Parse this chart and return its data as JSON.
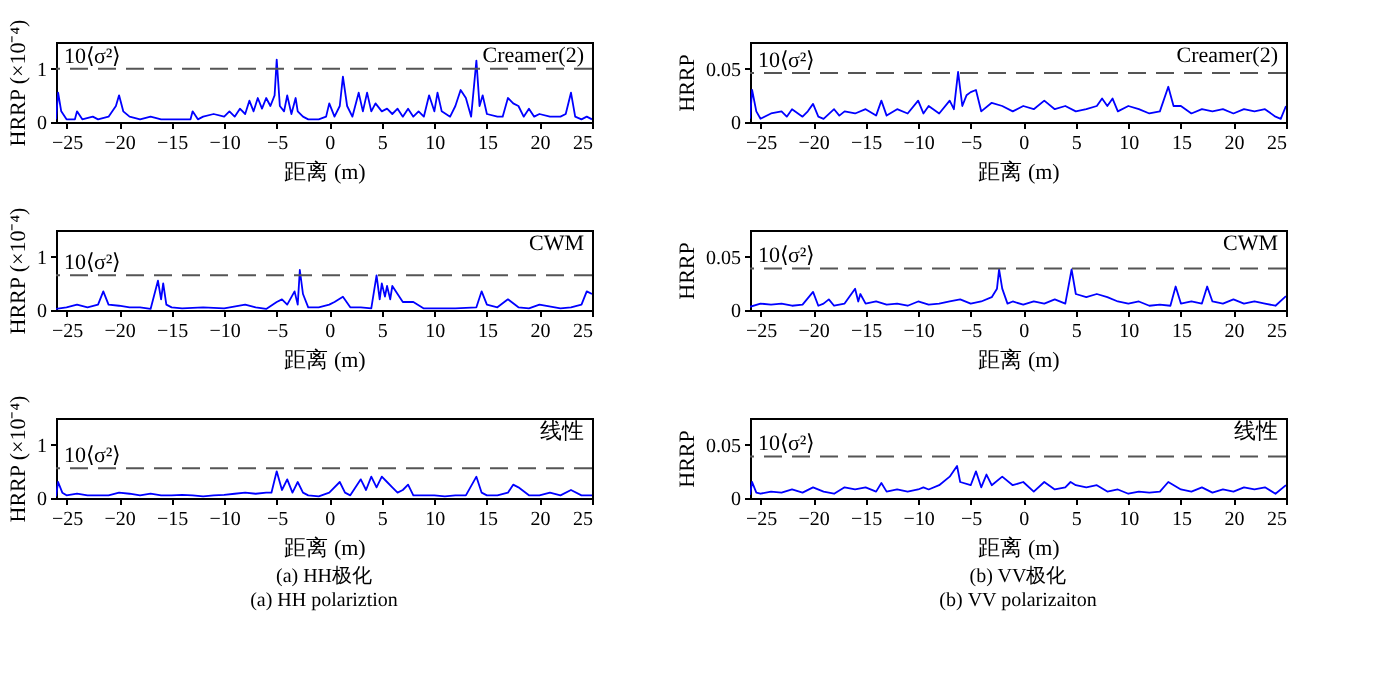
{
  "chart_data": [
    {
      "type": "line",
      "xlabel": "距离 (m)",
      "ylabel": "HRRP (×10⁻⁴)",
      "xlim": [
        -26,
        25
      ],
      "xticks": [
        -25,
        -20,
        -15,
        -10,
        -5,
        0,
        5,
        10,
        15,
        20,
        25
      ],
      "ylim": [
        0,
        1.5
      ],
      "yticks": [
        0,
        1
      ],
      "annotations": [
        "Creamer(2)"
      ],
      "ref_lines": [
        {
          "axis": "y",
          "value": 1.0,
          "label": "10⟨σ²⟩",
          "line_style": "dashed",
          "color": "#555555"
        }
      ],
      "series": [
        {
          "color": "#0000ff",
          "x": [
            -26,
            -25.8,
            -25.5,
            -25,
            -24.2,
            -24,
            -23.5,
            -22.5,
            -22,
            -21,
            -20.3,
            -20,
            -19.6,
            -19,
            -18,
            -17,
            -16,
            -15,
            -14,
            -13.2,
            -13,
            -12.5,
            -12,
            -11,
            -10,
            -9.5,
            -9,
            -8.5,
            -8,
            -7.6,
            -7.2,
            -6.8,
            -6.4,
            -6,
            -5.6,
            -5.2,
            -5,
            -4.7,
            -4.3,
            -4,
            -3.6,
            -3.2,
            -3,
            -2.5,
            -2,
            -1,
            -0.3,
            0,
            0.5,
            1,
            1.3,
            1.7,
            2.2,
            2.8,
            3.2,
            3.6,
            4,
            4.4,
            5,
            5.5,
            6,
            6.5,
            7,
            7.5,
            8,
            8.5,
            9,
            9.5,
            10,
            10.3,
            10.7,
            11.5,
            12,
            12.5,
            13,
            13.5,
            14,
            14.3,
            14.6,
            15,
            16,
            16.5,
            17,
            17.5,
            18,
            18.5,
            19,
            19.5,
            20,
            21,
            22,
            22.5,
            23,
            23.4,
            24,
            24.5,
            25
          ],
          "values": [
            0.05,
            0.55,
            0.2,
            0.05,
            0.05,
            0.2,
            0.05,
            0.1,
            0.05,
            0.1,
            0.3,
            0.5,
            0.2,
            0.1,
            0.05,
            0.1,
            0.05,
            0.05,
            0.05,
            0.05,
            0.2,
            0.05,
            0.1,
            0.15,
            0.1,
            0.2,
            0.1,
            0.25,
            0.15,
            0.4,
            0.2,
            0.45,
            0.25,
            0.45,
            0.3,
            0.5,
            1.17,
            0.3,
            0.2,
            0.5,
            0.15,
            0.45,
            0.2,
            0.1,
            0.05,
            0.05,
            0.1,
            0.35,
            0.1,
            0.3,
            0.85,
            0.3,
            0.1,
            0.55,
            0.2,
            0.55,
            0.2,
            0.35,
            0.2,
            0.25,
            0.15,
            0.25,
            0.1,
            0.25,
            0.1,
            0.2,
            0.1,
            0.5,
            0.2,
            0.55,
            0.2,
            0.1,
            0.3,
            0.6,
            0.45,
            0.1,
            1.15,
            0.3,
            0.5,
            0.15,
            0.1,
            0.1,
            0.45,
            0.35,
            0.3,
            0.1,
            0.25,
            0.1,
            0.15,
            0.1,
            0.1,
            0.15,
            0.55,
            0.1,
            0.05,
            0.1,
            0.05
          ]
        }
      ]
    },
    {
      "type": "line",
      "xlabel": "距离 (m)",
      "ylabel": "HRRP",
      "xlim": [
        -26,
        25
      ],
      "xticks": [
        -25,
        -20,
        -15,
        -10,
        -5,
        0,
        5,
        10,
        15,
        20,
        25
      ],
      "ylim": [
        0,
        0.075
      ],
      "yticks": [
        0,
        0.05
      ],
      "annotations": [
        "Creamer(2)"
      ],
      "ref_lines": [
        {
          "axis": "y",
          "value": 0.046,
          "label": "10⟨σ²⟩",
          "line_style": "dashed",
          "color": "#555555"
        }
      ],
      "series": [
        {
          "color": "#0000ff",
          "x": [
            -26,
            -25.8,
            -25.4,
            -25,
            -24,
            -23,
            -22.5,
            -22,
            -21,
            -20.5,
            -20,
            -19.5,
            -19,
            -18,
            -17.5,
            -17,
            -16,
            -15,
            -14,
            -13.5,
            -13,
            -12,
            -11,
            -10,
            -9.5,
            -9,
            -8,
            -7,
            -6.6,
            -6.2,
            -5.8,
            -5.4,
            -5,
            -4.5,
            -4,
            -3,
            -2,
            -1,
            0,
            1,
            2,
            3,
            4,
            5,
            6,
            7,
            7.5,
            8,
            8.5,
            9,
            10,
            11,
            12,
            13,
            13.8,
            14.3,
            15,
            16,
            17,
            18,
            19,
            20,
            21,
            22,
            23,
            24,
            24.5,
            25
          ],
          "values": [
            0.003,
            0.03,
            0.01,
            0.003,
            0.008,
            0.01,
            0.005,
            0.012,
            0.005,
            0.01,
            0.017,
            0.005,
            0.003,
            0.012,
            0.006,
            0.01,
            0.008,
            0.012,
            0.006,
            0.02,
            0.006,
            0.012,
            0.008,
            0.02,
            0.008,
            0.015,
            0.008,
            0.02,
            0.012,
            0.047,
            0.015,
            0.025,
            0.028,
            0.03,
            0.01,
            0.018,
            0.015,
            0.01,
            0.015,
            0.012,
            0.02,
            0.012,
            0.015,
            0.01,
            0.012,
            0.015,
            0.022,
            0.015,
            0.022,
            0.01,
            0.015,
            0.012,
            0.008,
            0.01,
            0.033,
            0.015,
            0.015,
            0.008,
            0.012,
            0.01,
            0.012,
            0.008,
            0.012,
            0.01,
            0.012,
            0.005,
            0.003,
            0.015
          ]
        }
      ]
    },
    {
      "type": "line",
      "xlabel": "距离 (m)",
      "ylabel": "HRRP (×10⁻⁴)",
      "xlim": [
        -26,
        25
      ],
      "xticks": [
        -25,
        -20,
        -15,
        -10,
        -5,
        0,
        5,
        10,
        15,
        20,
        25
      ],
      "ylim": [
        0,
        1.5
      ],
      "yticks": [
        0,
        1
      ],
      "annotations": [
        "CWM"
      ],
      "ref_lines": [
        {
          "axis": "y",
          "value": 0.65,
          "label": "10⟨σ²⟩",
          "line_style": "dashed",
          "color": "#555555"
        }
      ],
      "series": [
        {
          "color": "#0000ff",
          "x": [
            -26,
            -25,
            -24,
            -23,
            -22,
            -21.5,
            -21,
            -20,
            -19,
            -18,
            -17,
            -16.3,
            -16,
            -15.8,
            -15.5,
            -15,
            -14,
            -12,
            -10,
            -8,
            -7,
            -6,
            -5,
            -4.5,
            -4,
            -3.3,
            -3,
            -2.8,
            -2.5,
            -2,
            -1,
            0,
            0.5,
            1.3,
            2,
            3,
            4,
            4.5,
            4.8,
            5,
            5.3,
            5.5,
            5.8,
            6,
            6.5,
            7,
            8,
            9,
            10,
            12,
            14,
            14.5,
            15,
            16,
            17,
            18,
            19,
            20,
            22,
            23,
            24,
            24.5,
            25
          ],
          "values": [
            0.02,
            0.05,
            0.1,
            0.05,
            0.1,
            0.35,
            0.1,
            0.08,
            0.05,
            0.05,
            0.02,
            0.55,
            0.2,
            0.5,
            0.1,
            0.05,
            0.03,
            0.05,
            0.03,
            0.1,
            0.05,
            0.02,
            0.15,
            0.2,
            0.1,
            0.35,
            0.1,
            0.75,
            0.3,
            0.05,
            0.05,
            0.1,
            0.15,
            0.25,
            0.05,
            0.05,
            0.03,
            0.65,
            0.2,
            0.5,
            0.25,
            0.45,
            0.2,
            0.45,
            0.3,
            0.15,
            0.15,
            0.03,
            0.03,
            0.03,
            0.05,
            0.35,
            0.1,
            0.05,
            0.2,
            0.05,
            0.03,
            0.1,
            0.03,
            0.05,
            0.1,
            0.35,
            0.3
          ]
        }
      ]
    },
    {
      "type": "line",
      "xlabel": "距离 (m)",
      "ylabel": "HRRP",
      "xlim": [
        -26,
        25
      ],
      "xticks": [
        -25,
        -20,
        -15,
        -10,
        -5,
        0,
        5,
        10,
        15,
        20,
        25
      ],
      "ylim": [
        0,
        0.075
      ],
      "yticks": [
        0,
        0.05
      ],
      "annotations": [
        "CWM"
      ],
      "ref_lines": [
        {
          "axis": "y",
          "value": 0.039,
          "label": "10⟨σ²⟩",
          "line_style": "dashed",
          "color": "#555555"
        }
      ],
      "series": [
        {
          "color": "#0000ff",
          "x": [
            -26,
            -25,
            -24,
            -23,
            -22,
            -21,
            -20,
            -19.5,
            -19,
            -18.5,
            -18,
            -17,
            -16,
            -15.7,
            -15.5,
            -15,
            -14,
            -13,
            -12,
            -11,
            -10,
            -9,
            -8,
            -7,
            -6,
            -5,
            -4,
            -3,
            -2.5,
            -2.3,
            -2,
            -1.5,
            -1,
            0,
            1,
            2,
            3,
            4,
            4.6,
            5,
            6,
            7,
            8,
            9,
            10,
            11,
            12,
            13,
            14,
            14.5,
            15,
            16,
            17,
            17.5,
            18,
            19,
            20,
            21,
            22,
            23,
            24,
            25
          ],
          "values": [
            0.003,
            0.006,
            0.005,
            0.006,
            0.004,
            0.005,
            0.017,
            0.004,
            0.006,
            0.01,
            0.004,
            0.006,
            0.02,
            0.008,
            0.015,
            0.006,
            0.008,
            0.005,
            0.006,
            0.004,
            0.008,
            0.005,
            0.006,
            0.008,
            0.01,
            0.006,
            0.008,
            0.012,
            0.02,
            0.038,
            0.02,
            0.006,
            0.008,
            0.005,
            0.008,
            0.006,
            0.01,
            0.006,
            0.038,
            0.015,
            0.012,
            0.015,
            0.012,
            0.008,
            0.006,
            0.008,
            0.004,
            0.005,
            0.004,
            0.022,
            0.006,
            0.008,
            0.006,
            0.022,
            0.008,
            0.006,
            0.01,
            0.006,
            0.008,
            0.006,
            0.004,
            0.013
          ]
        }
      ]
    },
    {
      "type": "line",
      "xlabel": "距离 (m)",
      "ylabel": "HRRP (×10⁻⁴)",
      "xlim": [
        -26,
        25
      ],
      "xticks": [
        -25,
        -20,
        -15,
        -10,
        -5,
        0,
        5,
        10,
        15,
        20,
        25
      ],
      "ylim": [
        0,
        1.5
      ],
      "yticks": [
        0,
        1
      ],
      "annotations": [
        "线性",
        "(a) HH极化",
        "(a) HH polariztion"
      ],
      "ref_lines": [
        {
          "axis": "y",
          "value": 0.56,
          "label": "10⟨σ²⟩",
          "line_style": "dashed",
          "color": "#555555"
        }
      ],
      "series": [
        {
          "color": "#0000ff",
          "x": [
            -26,
            -25.8,
            -25.4,
            -25,
            -24,
            -23,
            -22,
            -21,
            -20,
            -19,
            -18,
            -17,
            -16,
            -15,
            -14,
            -13,
            -12,
            -11,
            -10,
            -9,
            -8,
            -7,
            -6,
            -5.5,
            -5,
            -4.5,
            -4,
            -3.5,
            -3,
            -2.5,
            -2,
            -1,
            0,
            1,
            1.5,
            2,
            3,
            3.5,
            4,
            4.5,
            5,
            5.5,
            6,
            6.5,
            7,
            7.5,
            8,
            9,
            10,
            11,
            12,
            13,
            14,
            14.5,
            15,
            16,
            17,
            17.5,
            18,
            19,
            20,
            21,
            22,
            23,
            24,
            25
          ],
          "values": [
            0.03,
            0.3,
            0.1,
            0.05,
            0.08,
            0.05,
            0.05,
            0.05,
            0.1,
            0.08,
            0.05,
            0.08,
            0.05,
            0.05,
            0.06,
            0.05,
            0.03,
            0.05,
            0.06,
            0.08,
            0.1,
            0.08,
            0.1,
            0.1,
            0.5,
            0.15,
            0.35,
            0.1,
            0.3,
            0.1,
            0.05,
            0.03,
            0.1,
            0.3,
            0.1,
            0.05,
            0.35,
            0.15,
            0.4,
            0.2,
            0.4,
            0.3,
            0.2,
            0.1,
            0.15,
            0.25,
            0.05,
            0.05,
            0.05,
            0.03,
            0.05,
            0.05,
            0.4,
            0.1,
            0.05,
            0.05,
            0.1,
            0.25,
            0.2,
            0.05,
            0.05,
            0.1,
            0.05,
            0.15,
            0.05,
            0.05
          ]
        }
      ]
    },
    {
      "type": "line",
      "xlabel": "距离 (m)",
      "ylabel": "HRRP",
      "xlim": [
        -26,
        25
      ],
      "xticks": [
        -25,
        -20,
        -15,
        -10,
        -5,
        0,
        5,
        10,
        15,
        20,
        25
      ],
      "ylim": [
        0,
        0.075
      ],
      "yticks": [
        0,
        0.05
      ],
      "annotations": [
        "线性",
        "(b) VV极化",
        "(b) VV polarizaiton"
      ],
      "ref_lines": [
        {
          "axis": "y",
          "value": 0.039,
          "label": "10⟨σ²⟩",
          "line_style": "dashed",
          "color": "#555555"
        }
      ],
      "series": [
        {
          "color": "#0000ff",
          "x": [
            -26,
            -25.8,
            -25.4,
            -25,
            -24,
            -23,
            -22,
            -21,
            -20,
            -19,
            -18,
            -17,
            -16,
            -15,
            -14,
            -13.5,
            -13,
            -12,
            -11,
            -10,
            -9.5,
            -9,
            -8,
            -7,
            -6.3,
            -6,
            -5,
            -4.5,
            -4,
            -3.5,
            -3,
            -2,
            -1,
            0,
            1,
            2,
            3,
            4,
            4.5,
            5,
            6,
            7,
            8,
            9,
            10,
            11,
            12,
            13,
            13.8,
            15,
            16,
            17,
            18,
            19,
            20,
            21,
            22,
            23,
            24,
            25
          ],
          "values": [
            0.003,
            0.015,
            0.005,
            0.004,
            0.006,
            0.005,
            0.008,
            0.005,
            0.01,
            0.006,
            0.004,
            0.01,
            0.008,
            0.01,
            0.006,
            0.014,
            0.006,
            0.008,
            0.006,
            0.008,
            0.01,
            0.008,
            0.012,
            0.02,
            0.03,
            0.015,
            0.012,
            0.025,
            0.01,
            0.022,
            0.012,
            0.02,
            0.012,
            0.015,
            0.006,
            0.015,
            0.008,
            0.01,
            0.015,
            0.012,
            0.01,
            0.012,
            0.006,
            0.008,
            0.004,
            0.006,
            0.005,
            0.006,
            0.015,
            0.008,
            0.006,
            0.01,
            0.005,
            0.008,
            0.006,
            0.01,
            0.008,
            0.01,
            0.004,
            0.012
          ]
        }
      ]
    }
  ]
}
